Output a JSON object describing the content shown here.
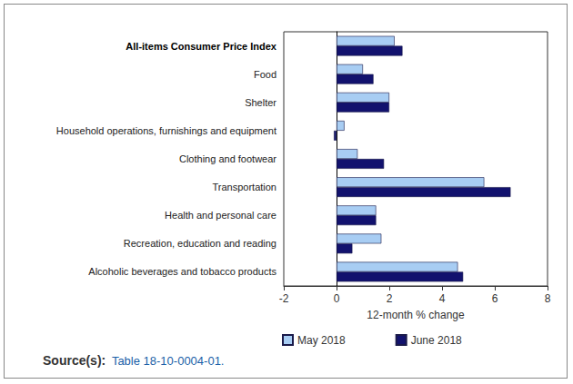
{
  "chart_data": {
    "type": "bar",
    "orientation": "horizontal",
    "categories": [
      "All-items Consumer Price Index",
      "Food",
      "Shelter",
      "Household operations, furnishings and equipment",
      "Clothing and footwear",
      "Transportation",
      "Health and personal care",
      "Recreation, education and reading",
      "Alcoholic beverages and tobacco products"
    ],
    "series": [
      {
        "name": "May 2018",
        "color": "#a8cdf3",
        "values": [
          2.2,
          1.0,
          2.0,
          0.3,
          0.8,
          5.6,
          1.5,
          1.7,
          4.6
        ]
      },
      {
        "name": "June 2018",
        "color": "#12126e",
        "values": [
          2.5,
          1.4,
          2.0,
          -0.1,
          1.8,
          6.6,
          1.5,
          0.6,
          4.8
        ]
      }
    ],
    "xlabel": "12-month % change",
    "xlim": [
      -2,
      8
    ],
    "xticks": [
      -2,
      0,
      2,
      4,
      6,
      8
    ],
    "grid": false,
    "legend": "bottom",
    "source": {
      "label": "Source(s):",
      "text": "Table 18-10-0004-01."
    }
  }
}
